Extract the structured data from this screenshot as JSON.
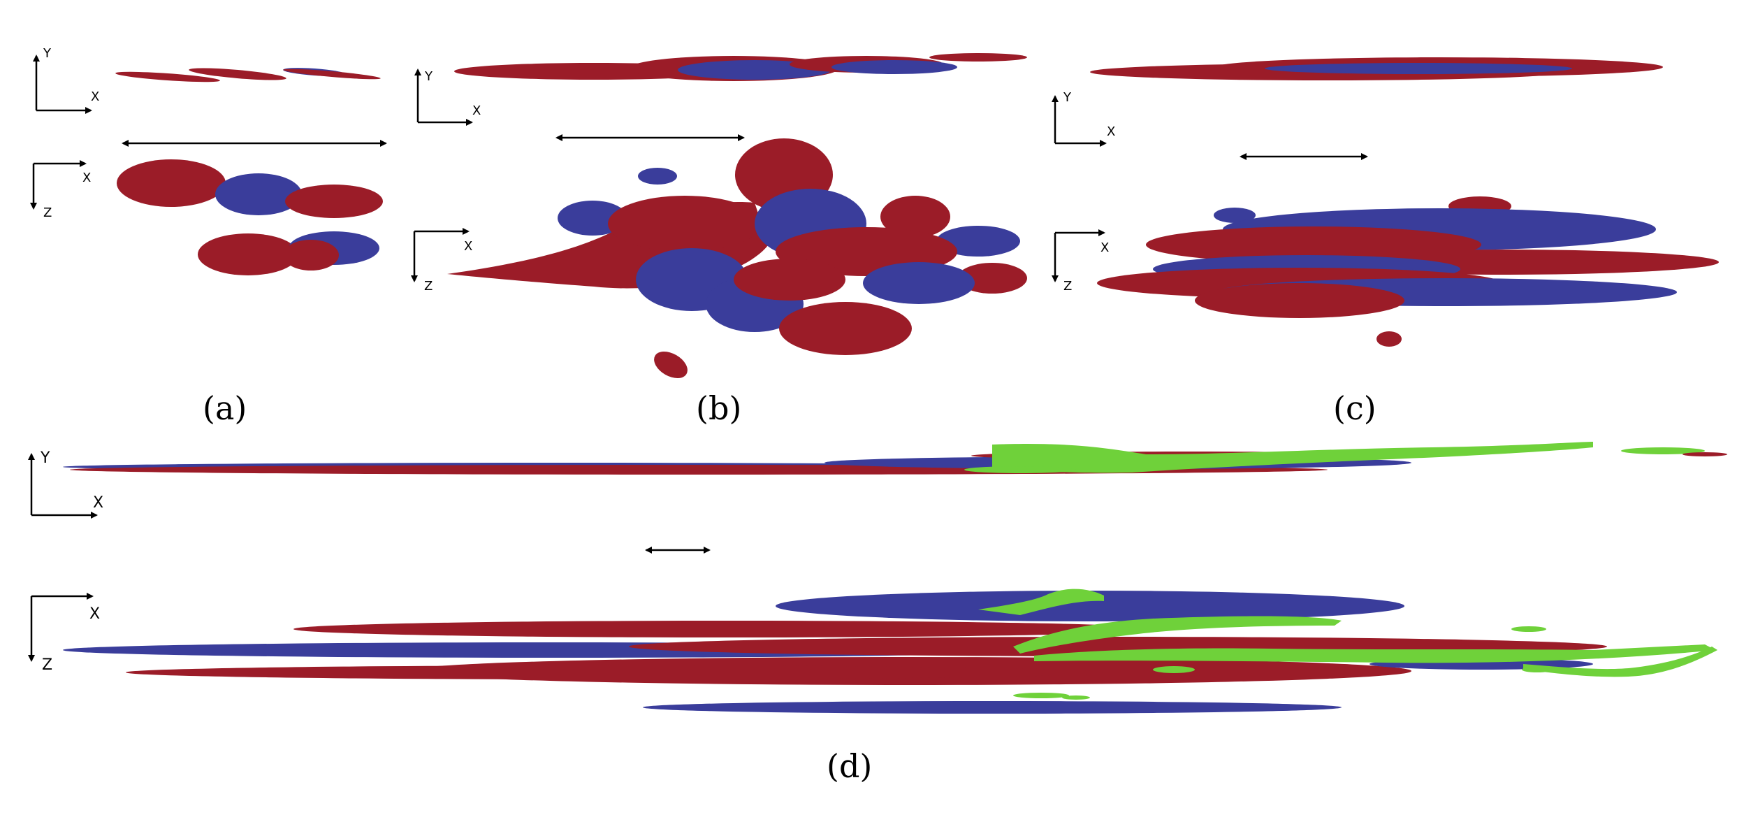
{
  "colors": {
    "positive": "#9b1c28",
    "negative": "#3a3d9b",
    "green": "#6fd13a",
    "axis": "#000000"
  },
  "panels": [
    {
      "id": "a",
      "caption": "(a)",
      "views": [
        {
          "axes": [
            "X",
            "Y"
          ],
          "label_case": "lower"
        },
        {
          "axes": [
            "X",
            "Z"
          ],
          "label_case": "lower"
        }
      ]
    },
    {
      "id": "b",
      "caption": "(b)",
      "views": [
        {
          "axes": [
            "X",
            "Y"
          ],
          "label_case": "lower"
        },
        {
          "axes": [
            "X",
            "Z"
          ],
          "label_case": "lower"
        }
      ]
    },
    {
      "id": "c",
      "caption": "(c)",
      "views": [
        {
          "axes": [
            "X",
            "Y"
          ],
          "label_case": "lower"
        },
        {
          "axes": [
            "X",
            "Z"
          ],
          "label_case": "lower"
        }
      ]
    },
    {
      "id": "d",
      "caption": "(d)",
      "views": [
        {
          "axes": [
            "X",
            "Y"
          ],
          "label_case": "upper"
        },
        {
          "axes": [
            "X",
            "Z"
          ],
          "label_case": "upper"
        }
      ]
    }
  ],
  "axis_labels": {
    "a_xy_x": "X",
    "a_xy_y": "Y",
    "a_xz_x": "X",
    "a_xz_z": "Z",
    "b_xy_x": "X",
    "b_xy_y": "Y",
    "b_xz_x": "X",
    "b_xz_z": "Z",
    "c_xy_x": "X",
    "c_xy_y": "Y",
    "c_xz_x": "X",
    "c_xz_z": "Z",
    "d_xy_x": "X",
    "d_xy_y": "Y",
    "d_xz_x": "X",
    "d_xz_z": "Z"
  }
}
